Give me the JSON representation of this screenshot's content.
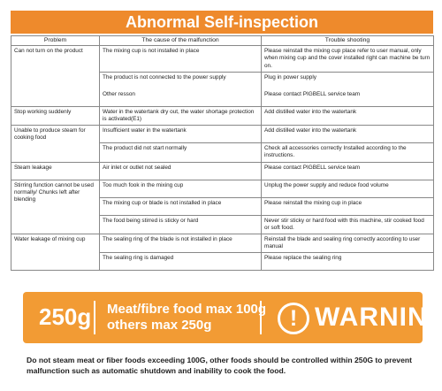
{
  "header": {
    "title": "Abnormal Self-inspection"
  },
  "table": {
    "columns": [
      "Problem",
      "The cause of the malfunction",
      "Trouble shooting"
    ],
    "rows": [
      {
        "problem": "Can not turn on the product",
        "causes": [
          {
            "cause": "The mixing cup is not installed in place",
            "fix": "Please reinstall the mixing cup place refer to  user manual, only when mixing cup and the cover installed right can machine be turn on."
          },
          {
            "cause": "The product is not connected to the power supply",
            "fix": "Plug in power supply"
          },
          {
            "cause": "Other resson",
            "fix": "Please contact PIGBELL service team"
          }
        ]
      },
      {
        "problem": "Stop working suddenly",
        "causes": [
          {
            "cause": "Water in the watertank dry out, the water shortage protection is activated(E1)",
            "fix": "Add distilled water into the watertank"
          }
        ]
      },
      {
        "problem": "Unable to produce steam for cooking food",
        "causes": [
          {
            "cause": "Insufficient water in the watertank",
            "fix": "Add distilled water into the watertank"
          },
          {
            "cause": "The product did not start normally",
            "fix": "Check all accessories correctly Installed according to the instructions."
          }
        ]
      },
      {
        "problem": "Steam leakage",
        "causes": [
          {
            "cause": "Air inlet or outlet not sealed",
            "fix": "Please contact PIGBELL service team"
          }
        ]
      },
      {
        "problem": "Stirring function cannot be used normally/ Chunks left after blending",
        "causes": [
          {
            "cause": "Too much fook in the mixing cup",
            "fix": "Unplug the power supply and reduce food volume"
          },
          {
            "cause": "The mixing cup or blade is not installed in place",
            "fix": "Please reinstall the mixing cup in place"
          },
          {
            "cause": "The food being stirred is sticky or hard",
            "fix": "Never stir sticky or hard food with this machine, stir cooked food or soft food."
          }
        ]
      },
      {
        "problem": "Water leakage of mixing cup",
        "causes": [
          {
            "cause": "The sealing ring of the blade is not installed in place",
            "fix": "Reinstall the blade and sealing ring correctly according to user manual"
          },
          {
            "cause": "The sealing ring is damaged",
            "fix": "Please replace the sealing ring"
          }
        ]
      }
    ]
  },
  "warning": {
    "amount": "250g",
    "lines": [
      "Meat/fibre food max 100g",
      "others max 250g"
    ],
    "icon": "!",
    "word": "WARNING"
  },
  "note": "Do not steam meat or fiber foods exceeding 100G, other foods should be controlled within 250G to prevent malfunction such as automatic shutdown and inability to cook the food."
}
